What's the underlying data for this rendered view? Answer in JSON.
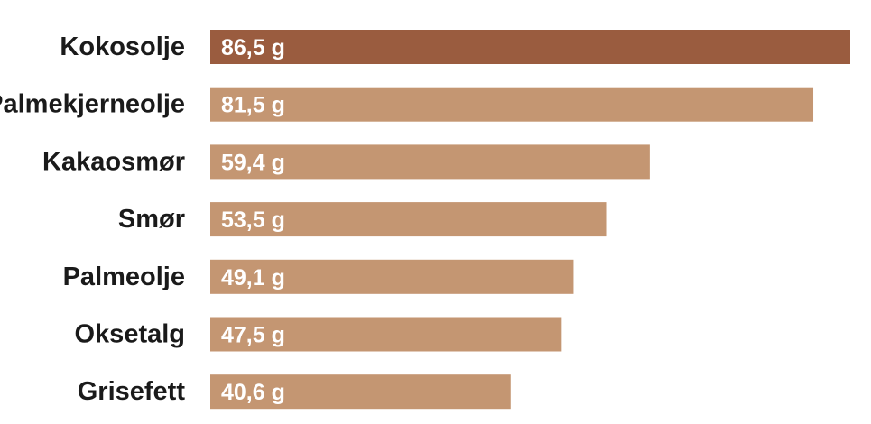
{
  "chart_data": {
    "type": "bar",
    "orientation": "horizontal",
    "title": "",
    "xlabel": "",
    "ylabel": "",
    "unit": "g",
    "categories": [
      "Kokosolje",
      "Palmekjerneolje",
      "Kakaosmør",
      "Smør",
      "Palmeolje",
      "Oksetalg",
      "Grisefett"
    ],
    "values": [
      86.5,
      81.5,
      59.4,
      53.5,
      49.1,
      47.5,
      40.6
    ],
    "value_labels": [
      "86,5 g",
      "81,5 g",
      "59,4 g",
      "53,5 g",
      "49,1 g",
      "47,5 g",
      "40,6 g"
    ],
    "highlight_index": 0,
    "grid": false,
    "legend": "none"
  },
  "colors": {
    "highlight_bar": "#9a5c3f",
    "bar": "#c49672",
    "value_text": "#ffffff",
    "category_text": "#1a1a1a"
  }
}
